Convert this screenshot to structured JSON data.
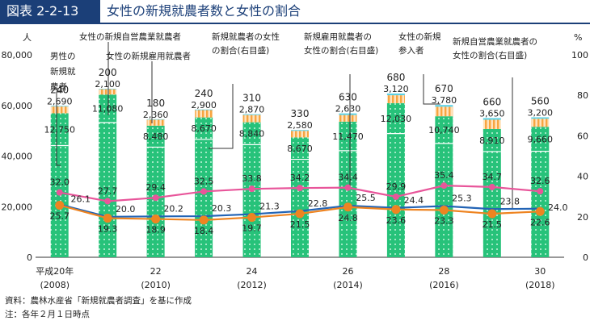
{
  "figure": {
    "label": "図表 2-2-13",
    "title": "女性の新規就農者数と女性の割合"
  },
  "colors": {
    "header_bg": "#1b3f78",
    "bar_green": "#27c27a",
    "bar_orange": "#f7a541",
    "bar_cyan": "#5ad1e6",
    "line_pink": "#e8559a",
    "line_orange": "#ee8421",
    "line_blue": "#2364b5"
  },
  "chart_data": {
    "type": "bar",
    "stacked": true,
    "categories": [
      "平成20年\n(2008)",
      "",
      "22\n(2010)",
      "",
      "24\n(2012)",
      "",
      "26\n(2014)",
      "",
      "28\n(2016)",
      "",
      "30\n(2018)"
    ],
    "y_left": {
      "unit": "人",
      "ylim": [
        0,
        80000
      ],
      "ticks": [
        "0",
        "20,000",
        "40,000",
        "60,000",
        "80,000"
      ]
    },
    "y_right": {
      "unit": "%",
      "ylim": [
        0,
        100
      ],
      "ticks": [
        "0",
        "20",
        "40",
        "60",
        "80",
        "100"
      ]
    },
    "bar_series": [
      {
        "name": "女性の新規雇用就農者",
        "values": [
          240,
          200,
          180,
          240,
          310,
          330,
          630,
          680,
          670,
          660,
          560
        ]
      },
      {
        "name": "女性の新規参入者",
        "values": [
          2690,
          2100,
          2360,
          2900,
          2870,
          2580,
          2630,
          3120,
          3780,
          3650,
          3200
        ]
      },
      {
        "name": "女性の新規自営農業就農者",
        "values": [
          12750,
          11080,
          8480,
          8670,
          8840,
          8670,
          11470,
          12030,
          10740,
          8910,
          9660
        ]
      },
      {
        "name": "",
        "values": [
          44140,
          53230,
          43530,
          46590,
          44510,
          38700,
          42120,
          48880,
          44980,
          41780,
          41890
        ]
      }
    ],
    "bar_labels": [
      [
        "240",
        "2,690",
        "12,750"
      ],
      [
        "200",
        "2,100",
        "11,080"
      ],
      [
        "180",
        "2,360",
        "8,480"
      ],
      [
        "240",
        "2,900",
        "8,670"
      ],
      [
        "310",
        "2,870",
        "8,840"
      ],
      [
        "330",
        "2,580",
        "8,670"
      ],
      [
        "630",
        "2,630",
        "11,470"
      ],
      [
        "680",
        "3,120",
        "12,030"
      ],
      [
        "670",
        "3,780",
        "10,740"
      ],
      [
        "660",
        "3,650",
        "8,910"
      ],
      [
        "560",
        "3,200",
        "9,660"
      ]
    ],
    "line_series": [
      {
        "name": "新規就農者の女性の割合（右目盛）",
        "values": [
          32.0,
          27.7,
          29.4,
          32.5,
          33.8,
          34.2,
          34.4,
          29.9,
          35.4,
          34.7,
          32.6
        ]
      },
      {
        "name": "新規雇用就農者の女性の割合（右目盛）",
        "values": [
          26.1,
          20.0,
          20.2,
          20.3,
          21.3,
          22.8,
          25.5,
          24.4,
          25.3,
          23.8,
          24.0
        ]
      },
      {
        "name": "新規自営農業就農者の女性の割合（右目盛）",
        "values": [
          25.7,
          19.3,
          18.9,
          18.4,
          19.7,
          21.5,
          24.8,
          23.6,
          23.3,
          21.5,
          22.6
        ]
      }
    ],
    "annotations": [
      {
        "text": "男性の\n新規就\n農者"
      },
      {
        "text": "女性の新規自営農業就農者"
      },
      {
        "text": "女性の新規雇用就農者"
      },
      {
        "text": "新規就農者の女性\nの割合(右目盛)"
      },
      {
        "text": "新規雇用就農者の\n女性の割合(右目盛)"
      },
      {
        "text": "女性の新規\n参入者"
      },
      {
        "text": "新規自営農業就農者の\n女性の割合(右目盛)"
      }
    ]
  },
  "notes": {
    "source": "資料：農林水産省「新規就農者調査」を基に作成",
    "note": "注：各年２月１日時点"
  }
}
